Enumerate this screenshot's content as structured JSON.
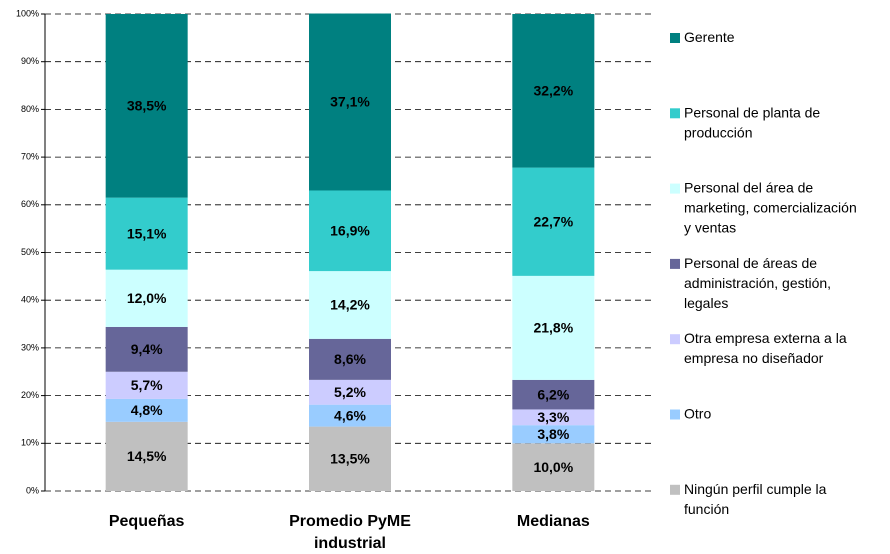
{
  "chart_data": {
    "type": "stacked_bar",
    "categories": [
      "Pequeñas",
      "Promedio PyME industrial",
      "Medianas"
    ],
    "ylim": [
      0,
      100
    ],
    "yticks": [
      {
        "value": 0,
        "label": "0%"
      },
      {
        "value": 10,
        "label": "10%"
      },
      {
        "value": 20,
        "label": "20%"
      },
      {
        "value": 30,
        "label": "30%"
      },
      {
        "value": 40,
        "label": "40%"
      },
      {
        "value": 50,
        "label": "50%"
      },
      {
        "value": 60,
        "label": "60%"
      },
      {
        "value": 70,
        "label": "70%"
      },
      {
        "value": 80,
        "label": "80%"
      },
      {
        "value": 90,
        "label": "90%"
      },
      {
        "value": 100,
        "label": "100%"
      }
    ],
    "grid": true,
    "legend": "right",
    "series": [
      {
        "name": "Ningún perfil cumple la función",
        "color": "#c0c0c0",
        "values": [
          14.5,
          13.5,
          10.0
        ],
        "value_labels": [
          "14,5%",
          "13,5%",
          "10,0%"
        ]
      },
      {
        "name": "Otro",
        "color": "#99ccff",
        "values": [
          4.8,
          4.6,
          3.8
        ],
        "value_labels": [
          "4,8%",
          "4,6%",
          "3,8%"
        ]
      },
      {
        "name": "Otra empresa externa a la empresa no diseñador",
        "color": "#ccccff",
        "values": [
          5.7,
          5.2,
          3.3
        ],
        "value_labels": [
          "5,7%",
          "5,2%",
          "3,3%"
        ]
      },
      {
        "name": "Personal de áreas de administración, gestión, legales",
        "color": "#666699",
        "values": [
          9.4,
          8.6,
          6.2
        ],
        "value_labels": [
          "9,4%",
          "8,6%",
          "6,2%"
        ]
      },
      {
        "name": "Personal del área de marketing, comercialización y ventas",
        "color": "#ccffff",
        "values": [
          12.0,
          14.2,
          21.8
        ],
        "value_labels": [
          "12,0%",
          "14,2%",
          "21,8%"
        ]
      },
      {
        "name": "Personal de planta de producción",
        "color": "#33cccc",
        "values": [
          15.1,
          16.9,
          22.7
        ],
        "value_labels": [
          "15,1%",
          "16,9%",
          "22,7%"
        ]
      },
      {
        "name": "Gerente",
        "color": "#008080",
        "values": [
          38.5,
          37.1,
          32.2
        ],
        "value_labels": [
          "38,5%",
          "37,1%",
          "32,2%"
        ]
      }
    ]
  }
}
